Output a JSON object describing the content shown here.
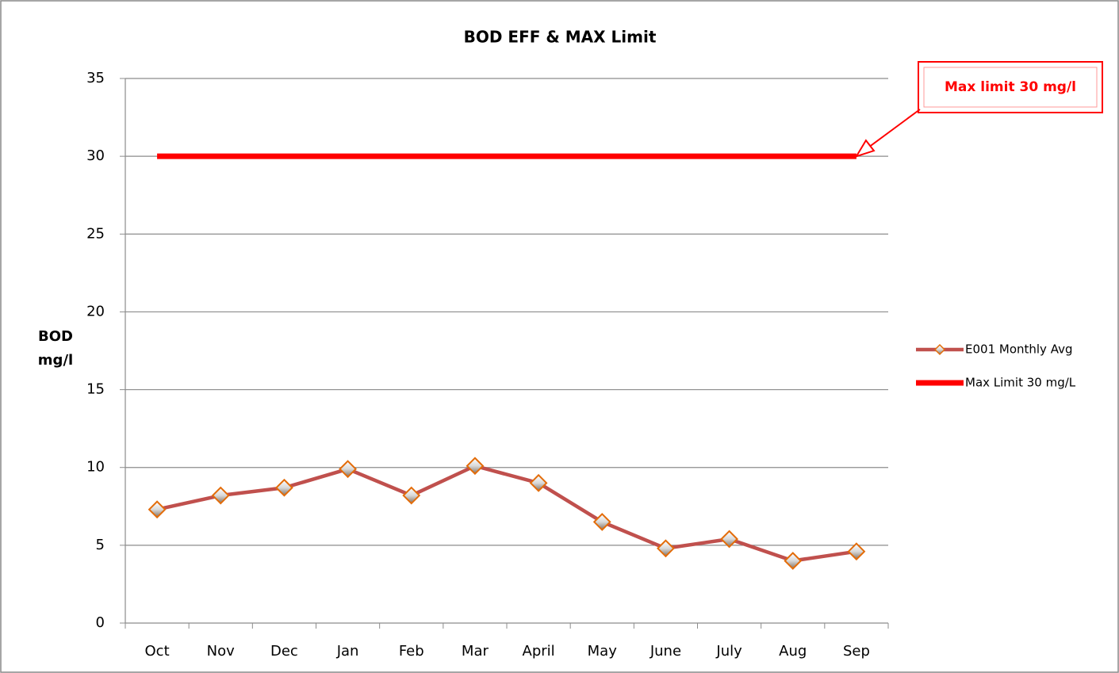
{
  "chart_data": {
    "type": "line",
    "title": "BOD EFF & MAX Limit",
    "ylabel": "BOD mg/l",
    "annotation": "Max limit 30 mg/l",
    "categories": [
      "Oct",
      "Nov",
      "Dec",
      "Jan",
      "Feb",
      "Mar",
      "April",
      "May",
      "June",
      "July",
      "Aug",
      "Sep"
    ],
    "series": [
      {
        "name": "E001 Monthly Avg",
        "color": "#c0504d",
        "marker": "diamond",
        "values": [
          7.3,
          8.2,
          8.7,
          9.9,
          8.2,
          10.1,
          9.0,
          6.5,
          4.8,
          5.4,
          4.0,
          4.6
        ]
      },
      {
        "name": "Max Limit 30 mg/L",
        "color": "#ff0000",
        "values": [
          30,
          30,
          30,
          30,
          30,
          30,
          30,
          30,
          30,
          30,
          30,
          30
        ]
      }
    ],
    "ylim": [
      0,
      35
    ],
    "yticks": [
      0,
      5,
      10,
      15,
      20,
      25,
      30,
      35
    ],
    "grid": true,
    "legend": "right"
  }
}
